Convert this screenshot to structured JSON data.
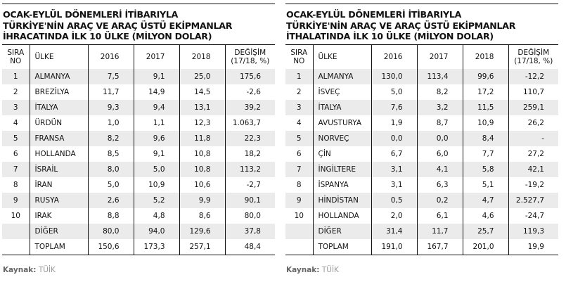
{
  "headers": {
    "sira": "SIRA",
    "no": "NO",
    "ulke": "ÜLKE",
    "y2016": "2016",
    "y2017": "2017",
    "y2018": "2018",
    "degisim": "DEĞİŞİM",
    "degisim_sub": "(17/18, %)"
  },
  "source": {
    "label": "Kaynak:",
    "value": "TÜİK"
  },
  "colors": {
    "row_alt": "#ebebeb",
    "rule": "#111111"
  },
  "tables": [
    {
      "title": [
        "OCAK-EYLÜL DÖNEMLERİ İTİBARIYLA",
        "TÜRKİYE'NİN ARAÇ VE ARAÇ ÜSTÜ EKİPMANLAR",
        "İHRACATINDA İLK 10 ÜLKE (MİLYON DOLAR)"
      ],
      "rows": [
        [
          "1",
          "ALMANYA",
          "7,5",
          "9,1",
          "25,0",
          "175,6"
        ],
        [
          "2",
          "BREZİLYA",
          "11,7",
          "14,9",
          "14,5",
          "-2,6"
        ],
        [
          "3",
          "İTALYA",
          "9,3",
          "9,4",
          "13,1",
          "39,2"
        ],
        [
          "4",
          "ÜRDÜN",
          "1,0",
          "1,1",
          "12,3",
          "1.063,7"
        ],
        [
          "5",
          "FRANSA",
          "8,2",
          "9,6",
          "11,8",
          "22,3"
        ],
        [
          "6",
          "HOLLANDA",
          "8,5",
          "9,1",
          "10,8",
          "18,2"
        ],
        [
          "7",
          "İSRAİL",
          "8,0",
          "5,0",
          "10,8",
          "113,2"
        ],
        [
          "8",
          "İRAN",
          "5,0",
          "10,9",
          "10,6",
          "-2,7"
        ],
        [
          "9",
          "RUSYA",
          "2,6",
          "5,2",
          "9,9",
          "90,1"
        ],
        [
          "10",
          "IRAK",
          "8,8",
          "4,8",
          "8,6",
          "80,0"
        ],
        [
          "",
          "DİĞER",
          "80,0",
          "94,0",
          "129,6",
          "37,8"
        ],
        [
          "",
          "TOPLAM",
          "150,6",
          "173,3",
          "257,1",
          "48,4"
        ]
      ]
    },
    {
      "title": [
        "OCAK-EYLÜL DÖNEMLERİ İTİBARIYLA",
        "TÜRKİYE'NİN ARAÇ VE ARAÇ ÜSTÜ EKİPMANLAR",
        "İTHALATINDA İLK 10 ÜLKE (MİLYON DOLAR)"
      ],
      "rows": [
        [
          "1",
          "ALMANYA",
          "130,0",
          "113,4",
          "99,6",
          "-12,2"
        ],
        [
          "2",
          "İSVEÇ",
          "5,0",
          "8,2",
          "17,2",
          "110,7"
        ],
        [
          "3",
          "İTALYA",
          "7,6",
          "3,2",
          "11,5",
          "259,1"
        ],
        [
          "4",
          "AVUSTURYA",
          "1,9",
          "8,7",
          "10,9",
          "26,2"
        ],
        [
          "5",
          "NORVEÇ",
          "0,0",
          "0,0",
          "8,4",
          "-"
        ],
        [
          "6",
          "ÇİN",
          "6,7",
          "6,0",
          "7,7",
          "27,2"
        ],
        [
          "7",
          "İNGİLTERE",
          "3,1",
          "4,1",
          "5,8",
          "42,1"
        ],
        [
          "8",
          "İSPANYA",
          "3,1",
          "6,3",
          "5,1",
          "-19,2"
        ],
        [
          "9",
          "HİNDİSTAN",
          "0,5",
          "0,2",
          "4,7",
          "2.527,7"
        ],
        [
          "10",
          "HOLLANDA",
          "2,0",
          "6,1",
          "4,6",
          "-24,7"
        ],
        [
          "",
          "DİĞER",
          "31,4",
          "11,7",
          "25,7",
          "119,3"
        ],
        [
          "",
          "TOPLAM",
          "191,0",
          "167,7",
          "201,0",
          "19,9"
        ]
      ]
    }
  ]
}
